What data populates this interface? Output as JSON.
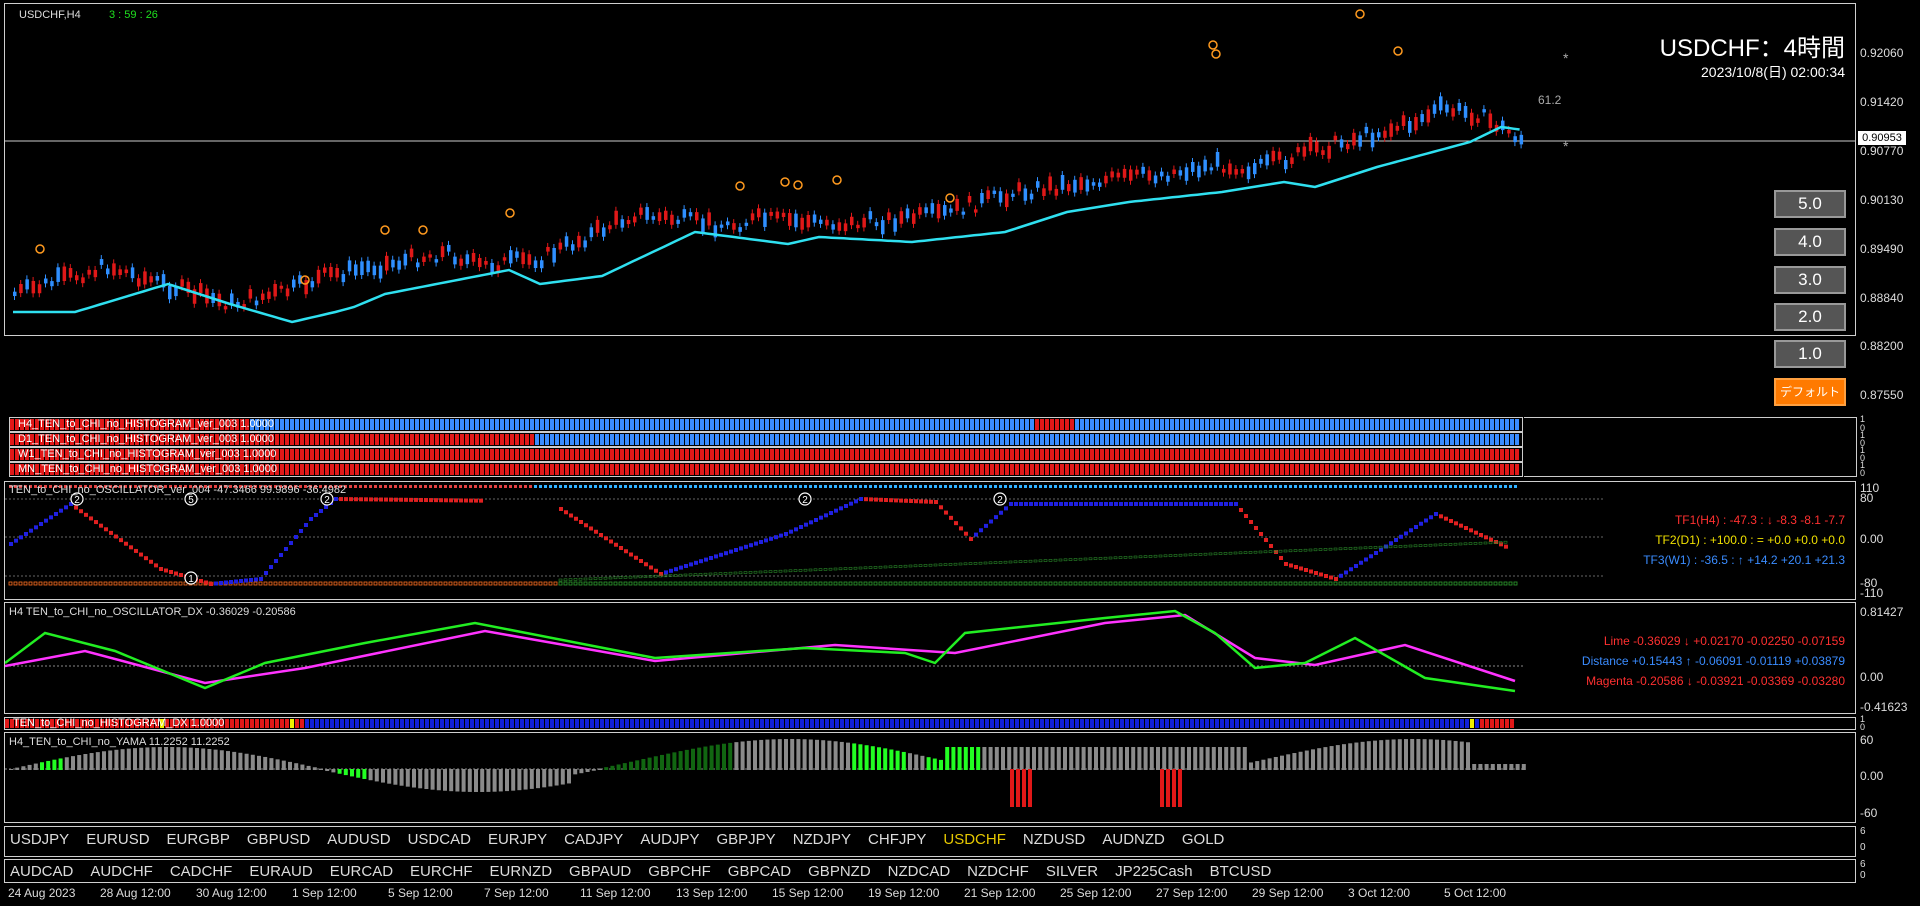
{
  "main": {
    "header_symbol": "USDCHF,H4",
    "countdown": "3 : 59 : 26",
    "big_title": "USDCHF：4時間",
    "timestamp": "2023/10/8(日) 02:00:34",
    "fib_label": "61.2",
    "asterisk": "*",
    "current_price": "0.90953",
    "price_scale": [
      "0.92060",
      "0.91420",
      "0.90770",
      "0.90130",
      "0.89490",
      "0.88840",
      "0.88200",
      "0.87550"
    ],
    "colors": {
      "bull": "#2f8fff",
      "bear": "#e01818",
      "ma_line": "#2fe0f0",
      "ma_flat": "#888888",
      "marker": "#ff9a1f"
    },
    "side_buttons": [
      "5.0",
      "4.0",
      "3.0",
      "2.0",
      "1.0"
    ],
    "default_button": "デフォルト"
  },
  "histograms": [
    {
      "label": "H4_TEN_to_CHI_no_HISTOGRAM_ver_003 1.0000"
    },
    {
      "label": "D1_TEN_to_CHI_no_HISTOGRAM_ver_003 1.0000"
    },
    {
      "label": "W1_TEN_to_CHI_no_HISTOGRAM_ver_003 1.0000"
    },
    {
      "label": "MN_TEN_to_CHI_no_HISTOGRAM_ver_003 1.0000"
    }
  ],
  "hist_scale": [
    "1",
    "0",
    "1",
    "0",
    "1",
    "0",
    "1",
    "0"
  ],
  "oscillator": {
    "title": "TEN_to_CHI_no_OSCILLATOR_ver_004 -47.3466 99.9896 -36.4982",
    "scale": [
      "110",
      "80",
      "0.00",
      "-80",
      "-110"
    ],
    "tf1": "TF1(H4) : -47.3 : ↓ -8.3 -8.1 -7.7",
    "tf2": "TF2(D1) : +100.0 : = +0.0 +0.0 +0.0",
    "tf3": "TF3(W1) : -36.5 : ↑ +14.2 +20.1 +21.3",
    "marker_nums": [
      "2",
      "5",
      "2",
      "1",
      "2",
      "2"
    ]
  },
  "dx": {
    "title": "H4 TEN_to_CHI_no_OSCILLATOR_DX -0.36029 -0.20586",
    "scale": [
      "0.81427",
      "0.00",
      "-0.41623"
    ],
    "lime": "Lime -0.36029 ↓ +0.02170 -0.02250 -0.07159",
    "distance": "Distance +0.15443 ↑ -0.06091 -0.01119 +0.03879",
    "magenta": "Magenta -0.20586 ↓ -0.03921 -0.03369 -0.03280"
  },
  "hist_dx": {
    "label": "TEN_to_CHI_no_HISTOGRAM_DX 1.0000",
    "scale": [
      "1",
      "0"
    ]
  },
  "yama": {
    "title": "H4_TEN_to_CHI_no_YAMA 11.2252 11.2252",
    "scale": [
      "60",
      "0.00",
      "-60"
    ]
  },
  "symbols_row1": [
    "USDJPY",
    "EURUSD",
    "EURGBP",
    "GBPUSD",
    "AUDUSD",
    "USDCAD",
    "EURJPY",
    "CADJPY",
    "AUDJPY",
    "GBPJPY",
    "NZDJPY",
    "CHFJPY",
    "USDCHF",
    "NZDUSD",
    "AUDNZD",
    "GOLD"
  ],
  "symbols_row2": [
    "AUDCAD",
    "AUDCHF",
    "CADCHF",
    "EURAUD",
    "EURCAD",
    "EURCHF",
    "EURNZD",
    "GBPAUD",
    "GBPCHF",
    "GBPCAD",
    "GBPNZD",
    "NZDCAD",
    "NZDCHF",
    "SILVER",
    "JP225Cash",
    "BTCUSD"
  ],
  "sym_scale1": [
    "6",
    "0"
  ],
  "sym_scale2": [
    "6",
    "0"
  ],
  "active_symbol": "USDCHF",
  "dates": [
    "24 Aug 2023",
    "28 Aug 12:00",
    "30 Aug 12:00",
    "1 Sep 12:00",
    "5 Sep 12:00",
    "7 Sep 12:00",
    "11 Sep 12:00",
    "13 Sep 12:00",
    "15 Sep 12:00",
    "19 Sep 12:00",
    "21 Sep 12:00",
    "25 Sep 12:00",
    "27 Sep 12:00",
    "29 Sep 12:00",
    "3 Oct 12:00",
    "5 Oct 12:00"
  ]
}
